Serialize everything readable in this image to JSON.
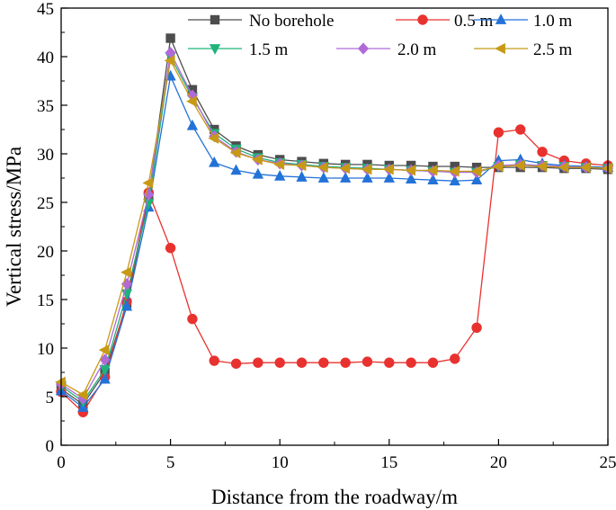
{
  "chart_data": {
    "type": "line",
    "title": "",
    "xlabel": "Distance from the roadway/m",
    "ylabel": "Vertical stress/MPa",
    "xlim": [
      0,
      25
    ],
    "ylim": [
      0,
      45
    ],
    "xticks": [
      0,
      5,
      10,
      15,
      20,
      25
    ],
    "yticks": [
      0,
      5,
      10,
      15,
      20,
      25,
      30,
      35,
      40,
      45
    ],
    "grid": false,
    "legend_position": "top-right",
    "x": [
      0,
      1,
      2,
      3,
      4,
      5,
      6,
      7,
      8,
      9,
      10,
      11,
      12,
      13,
      14,
      15,
      16,
      17,
      18,
      19,
      20,
      21,
      22,
      23,
      24,
      25
    ],
    "series": [
      {
        "name": "No borehole",
        "marker": "square",
        "color": "#4d4d4d",
        "values": [
          5.8,
          4.2,
          7.5,
          14.6,
          25.5,
          41.9,
          36.6,
          32.5,
          30.8,
          29.9,
          29.4,
          29.2,
          29.0,
          28.9,
          28.9,
          28.8,
          28.8,
          28.7,
          28.7,
          28.6,
          28.6,
          28.6,
          28.6,
          28.5,
          28.5,
          28.4
        ]
      },
      {
        "name": "0.5 m",
        "marker": "circle",
        "color": "#e8322f",
        "values": [
          5.5,
          3.4,
          7.0,
          14.8,
          26.0,
          20.3,
          13.0,
          8.7,
          8.4,
          8.5,
          8.5,
          8.5,
          8.5,
          8.5,
          8.6,
          8.5,
          8.5,
          8.5,
          8.9,
          12.1,
          32.2,
          32.5,
          30.2,
          29.3,
          29.0,
          28.8
        ]
      },
      {
        "name": "1.0 m",
        "marker": "triangle-up",
        "color": "#2372d8",
        "values": [
          5.6,
          3.9,
          6.8,
          14.3,
          24.5,
          38.0,
          32.9,
          29.1,
          28.3,
          27.9,
          27.7,
          27.6,
          27.5,
          27.5,
          27.5,
          27.5,
          27.4,
          27.3,
          27.2,
          27.3,
          29.3,
          29.4,
          29.0,
          28.8,
          28.7,
          28.6
        ]
      },
      {
        "name": "1.5 m",
        "marker": "triangle-down",
        "color": "#1fb37a",
        "values": [
          6.1,
          4.5,
          7.8,
          15.6,
          24.9,
          40.0,
          35.8,
          32.1,
          30.5,
          29.6,
          29.1,
          28.9,
          28.7,
          28.6,
          28.5,
          28.4,
          28.3,
          28.2,
          28.1,
          28.1,
          28.7,
          28.9,
          28.8,
          28.7,
          28.6,
          28.5
        ]
      },
      {
        "name": "2.0 m",
        "marker": "diamond",
        "color": "#b06ad8",
        "values": [
          6.3,
          4.8,
          8.8,
          16.6,
          25.8,
          40.4,
          36.0,
          31.8,
          30.2,
          29.4,
          29.0,
          28.8,
          28.6,
          28.5,
          28.4,
          28.4,
          28.3,
          28.2,
          28.1,
          28.1,
          28.8,
          28.9,
          28.8,
          28.7,
          28.6,
          28.5
        ]
      },
      {
        "name": "2.5 m",
        "marker": "triangle-left",
        "color": "#c79a16",
        "values": [
          6.5,
          5.2,
          9.8,
          17.8,
          27.0,
          39.6,
          35.4,
          31.6,
          30.1,
          29.4,
          28.9,
          28.8,
          28.6,
          28.5,
          28.4,
          28.4,
          28.3,
          28.3,
          28.2,
          28.2,
          28.7,
          28.8,
          28.7,
          28.6,
          28.6,
          28.5
        ]
      }
    ]
  }
}
